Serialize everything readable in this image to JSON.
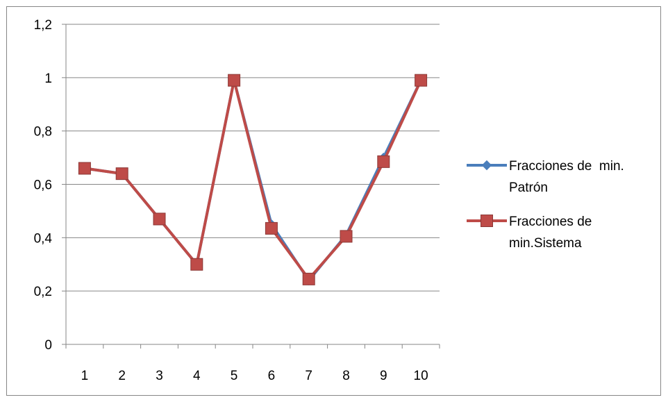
{
  "chart_data": {
    "type": "line",
    "categories": [
      "1",
      "2",
      "3",
      "4",
      "5",
      "6",
      "7",
      "8",
      "9",
      "10"
    ],
    "ylim": [
      0,
      1.2
    ],
    "y_ticks": [
      "0",
      "0,2",
      "0,4",
      "0,6",
      "0,8",
      "1",
      "1,2"
    ],
    "grid": true,
    "legend_position": "right",
    "series": [
      {
        "name_lines": [
          "Fracciones de  min.",
          "Patrón"
        ],
        "color": "#4A7EBB",
        "marker": "diamond",
        "values": [
          0.66,
          0.64,
          0.47,
          0.3,
          0.99,
          0.45,
          0.24,
          0.41,
          0.7,
          0.99
        ]
      },
      {
        "name_lines": [
          "Fracciones de",
          "min.Sistema"
        ],
        "color": "#BE4B48",
        "marker": "square",
        "values": [
          0.66,
          0.64,
          0.47,
          0.3,
          0.99,
          0.435,
          0.245,
          0.405,
          0.685,
          0.99
        ]
      }
    ]
  }
}
